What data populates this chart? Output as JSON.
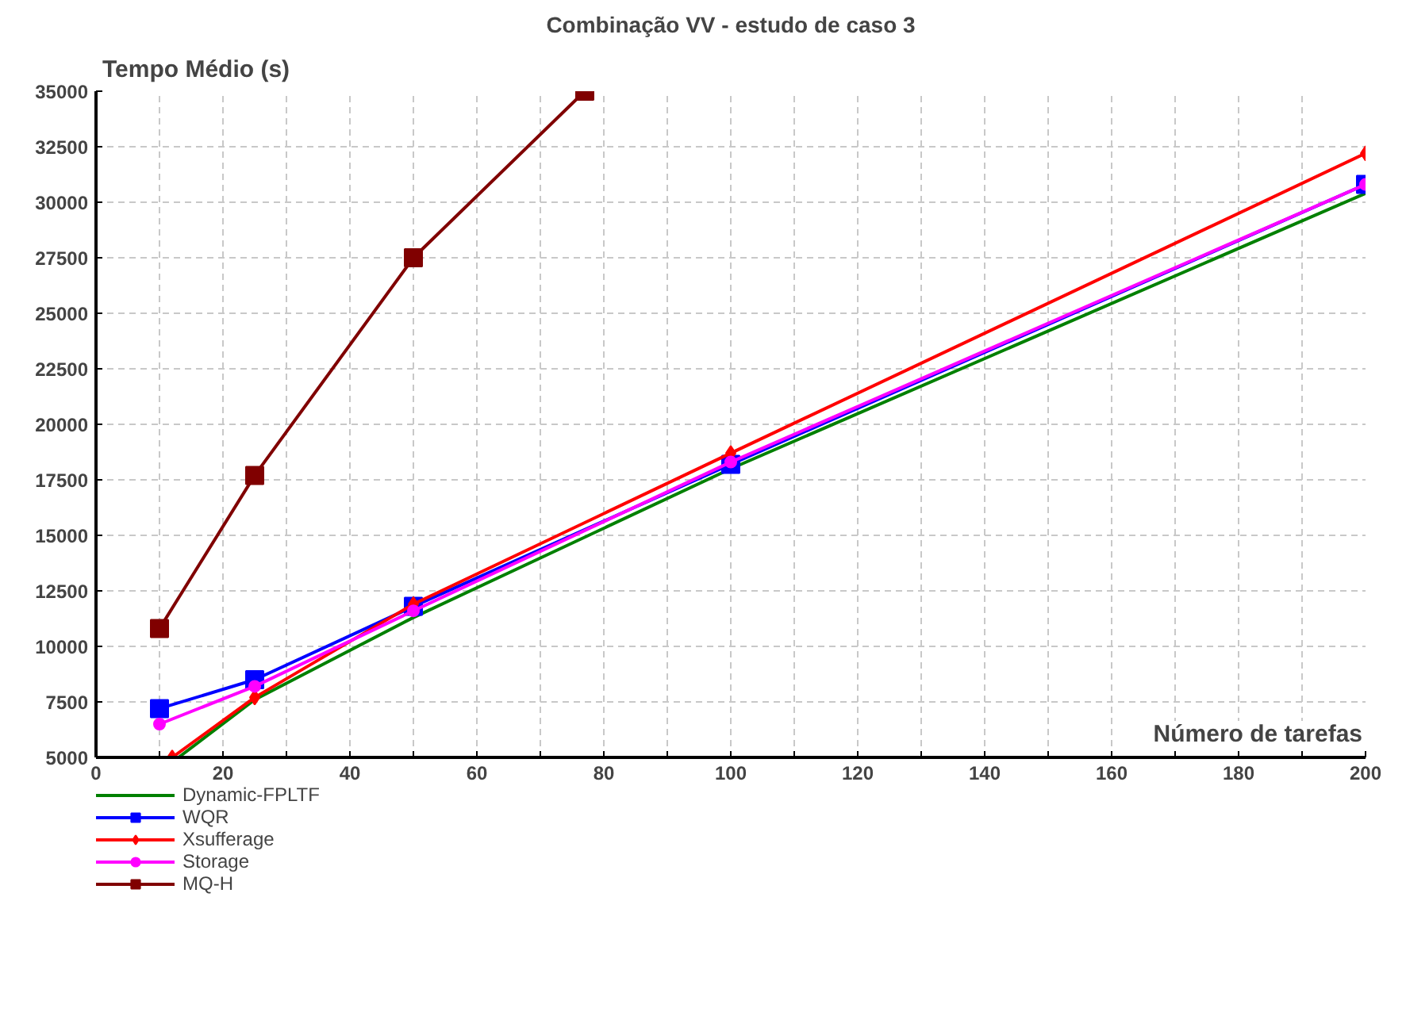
{
  "chart_data": {
    "type": "line",
    "title": "Combinação VV - estudo de caso 3",
    "xlabel": "Número de tarefas",
    "ylabel": "Tempo Médio (s)",
    "x": [
      10,
      25,
      50,
      100,
      200
    ],
    "series": [
      {
        "name": "Dynamic-FPLTF",
        "color": "#008000",
        "marker": "none",
        "x": [
          13,
          25,
          50,
          100,
          200
        ],
        "values": [
          5000,
          7600,
          11300,
          18000,
          30400
        ]
      },
      {
        "name": "WQR",
        "color": "#0000ff",
        "marker": "square",
        "values": [
          7200,
          8500,
          11800,
          18200,
          30800
        ]
      },
      {
        "name": "Xsufferage",
        "color": "#ff0000",
        "marker": "diamond",
        "x": [
          12,
          25,
          50,
          100,
          200
        ],
        "values": [
          5000,
          7700,
          11900,
          18700,
          32200
        ]
      },
      {
        "name": "Storage",
        "color": "#ff00ff",
        "marker": "circle",
        "values": [
          6500,
          8200,
          11600,
          18300,
          30800
        ]
      },
      {
        "name": "MQ-H",
        "color": "#800000",
        "marker": "square",
        "x": [
          10,
          25,
          50,
          77
        ],
        "values": [
          10800,
          17700,
          27500,
          35000
        ]
      }
    ],
    "xlim": [
      0,
      200
    ],
    "ylim": [
      5000,
      35000
    ],
    "xticks": [
      0,
      {
        "value": 10,
        "label": null
      },
      20,
      {
        "value": 30,
        "label": null
      },
      40,
      {
        "value": 50,
        "label": null
      },
      60,
      {
        "value": 70,
        "label": null
      },
      80,
      {
        "value": 90,
        "label": null
      },
      100,
      {
        "value": 110,
        "label": null
      },
      120,
      {
        "value": 130,
        "label": null
      },
      140,
      {
        "value": 150,
        "label": null
      },
      160,
      {
        "value": 170,
        "label": null
      },
      180,
      {
        "value": 190,
        "label": null
      },
      200
    ],
    "yticks": [
      5000,
      7500,
      10000,
      12500,
      15000,
      17500,
      20000,
      22500,
      25000,
      27500,
      30000,
      32500,
      35000
    ],
    "grid": true,
    "legend": "bottom left",
    "line_style": "solid"
  }
}
